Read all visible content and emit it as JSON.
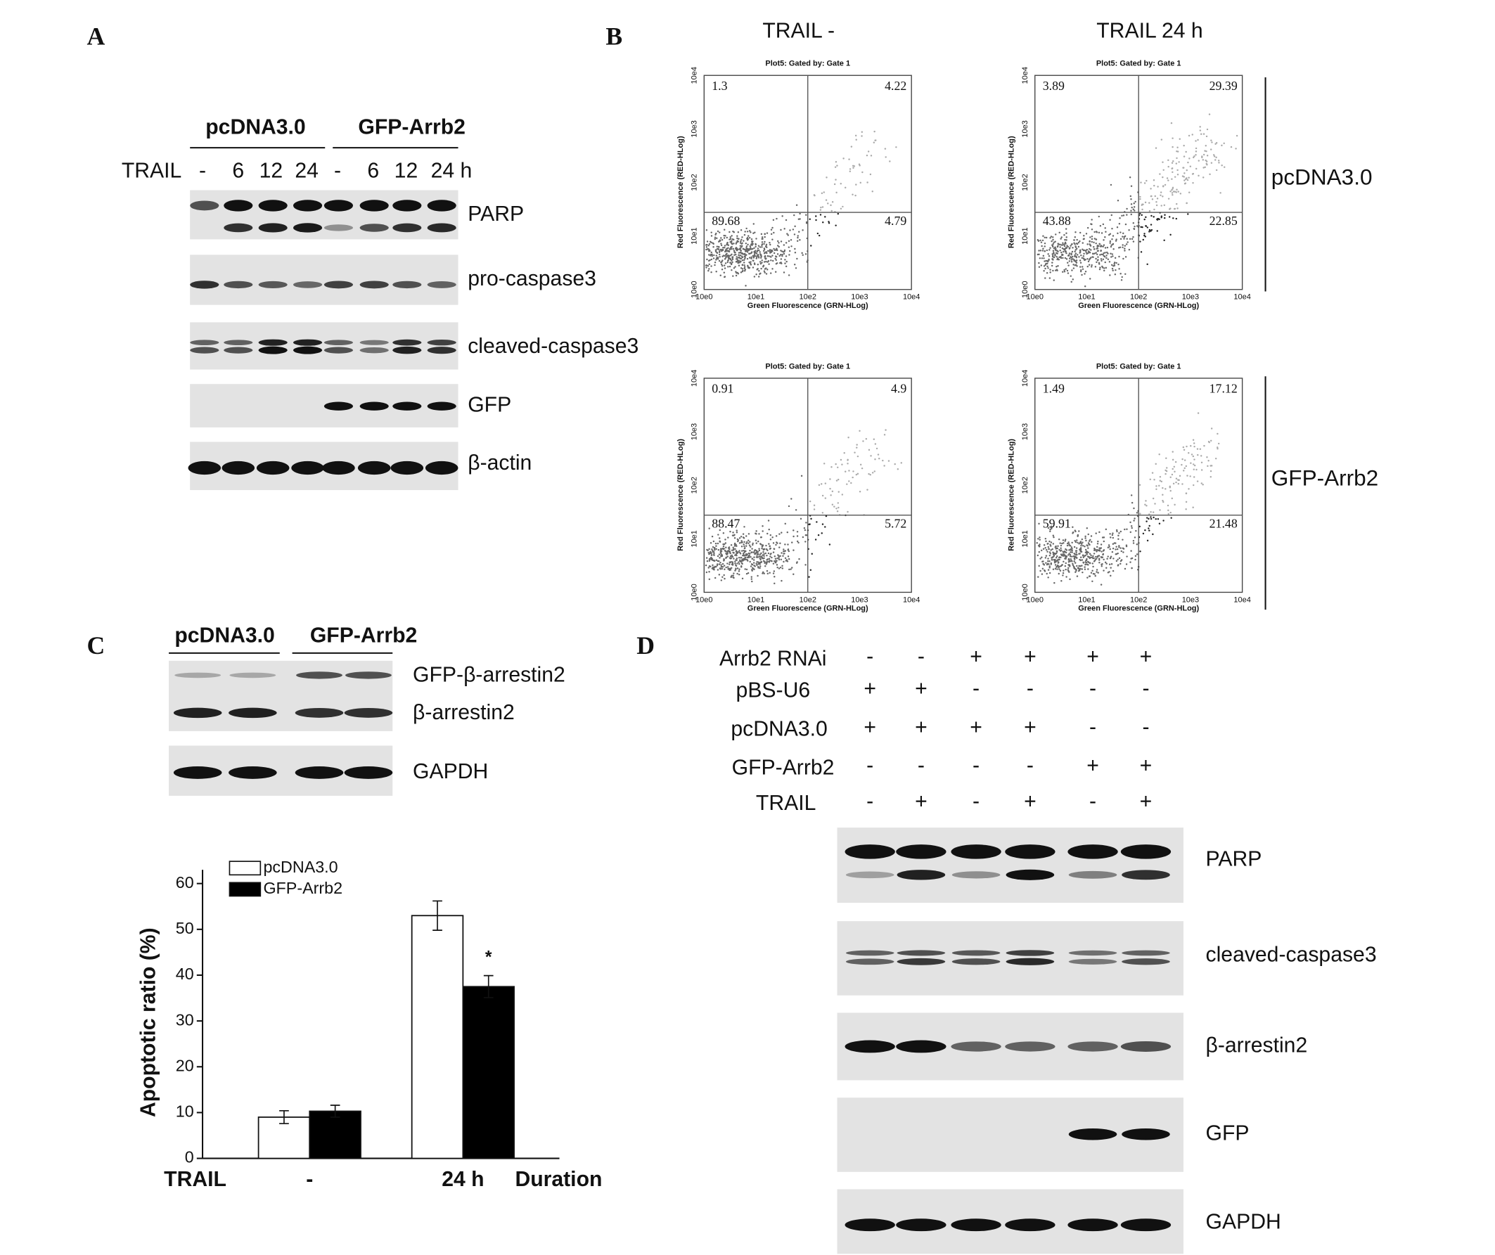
{
  "panel_a": {
    "label": "A",
    "groups": [
      "pcDNA3.0",
      "GFP-Arrb2"
    ],
    "row_label": "TRAIL",
    "lanes": [
      "-",
      "6",
      "12",
      "24",
      "-",
      "6",
      "12",
      "24 h"
    ],
    "blots": [
      "PARP",
      "pro-caspase3",
      "cleaved-caspase3",
      "GFP",
      "β-actin"
    ]
  },
  "panel_b": {
    "label": "B",
    "columns": [
      "TRAIL -",
      "TRAIL 24 h"
    ],
    "rows": [
      "pcDNA3.0",
      "GFP-Arrb2"
    ],
    "plot_header": "Plot5: Gated by: Gate 1",
    "x_axis_label": "Green Fluorescence (GRN-HLog)",
    "y_axis_label": "Red Fluorescence (RED-HLog)",
    "axis_ticks": [
      "10e0",
      "10e1",
      "10e2",
      "10e3",
      "10e4"
    ],
    "plots": [
      {
        "quadrants": [
          1.3,
          4.22,
          89.68,
          4.79
        ]
      },
      {
        "quadrants": [
          3.89,
          29.39,
          43.88,
          22.85
        ]
      },
      {
        "quadrants": [
          0.91,
          4.9,
          88.47,
          5.72
        ]
      },
      {
        "quadrants": [
          1.49,
          17.12,
          59.91,
          21.48
        ]
      }
    ]
  },
  "panel_c": {
    "label": "C",
    "groups": [
      "pcDNA3.0",
      "GFP-Arrb2"
    ],
    "blots": [
      "GFP-β-arrestin2",
      "β-arrestin2",
      "GAPDH"
    ]
  },
  "chart_data": {
    "type": "bar",
    "y_label": "Apoptotic ratio (%)",
    "x_prefix": "TRAIL",
    "x_label": "Duration",
    "categories": [
      "-",
      "24 h"
    ],
    "series": [
      {
        "name": "pcDNA3.0",
        "color": "#ffffff",
        "values": [
          9,
          53
        ],
        "errors": [
          1.4,
          3.2
        ]
      },
      {
        "name": "GFP-Arrb2",
        "color": "#000000",
        "values": [
          10.3,
          37.5
        ],
        "errors": [
          1.3,
          2.4
        ]
      }
    ],
    "ylim": [
      0,
      63
    ],
    "yticks": [
      0,
      10,
      20,
      30,
      40,
      50,
      60
    ],
    "annotation": "*"
  },
  "panel_d": {
    "label": "D",
    "conditions": [
      {
        "label": "Arrb2 RNAi",
        "values": [
          "-",
          "-",
          "+",
          "+",
          "+",
          "+"
        ]
      },
      {
        "label": "pBS-U6",
        "values": [
          "+",
          "+",
          "-",
          "-",
          "-",
          "-"
        ]
      },
      {
        "label": "pcDNA3.0",
        "values": [
          "+",
          "+",
          "+",
          "+",
          "-",
          "-"
        ]
      },
      {
        "label": "GFP-Arrb2",
        "values": [
          "-",
          "-",
          "-",
          "-",
          "+",
          "+"
        ]
      },
      {
        "label": "TRAIL",
        "values": [
          "-",
          "+",
          "-",
          "+",
          "-",
          "+"
        ]
      }
    ],
    "blots": [
      "PARP",
      "cleaved-caspase3",
      "β-arrestin2",
      "GFP",
      "GAPDH"
    ]
  }
}
